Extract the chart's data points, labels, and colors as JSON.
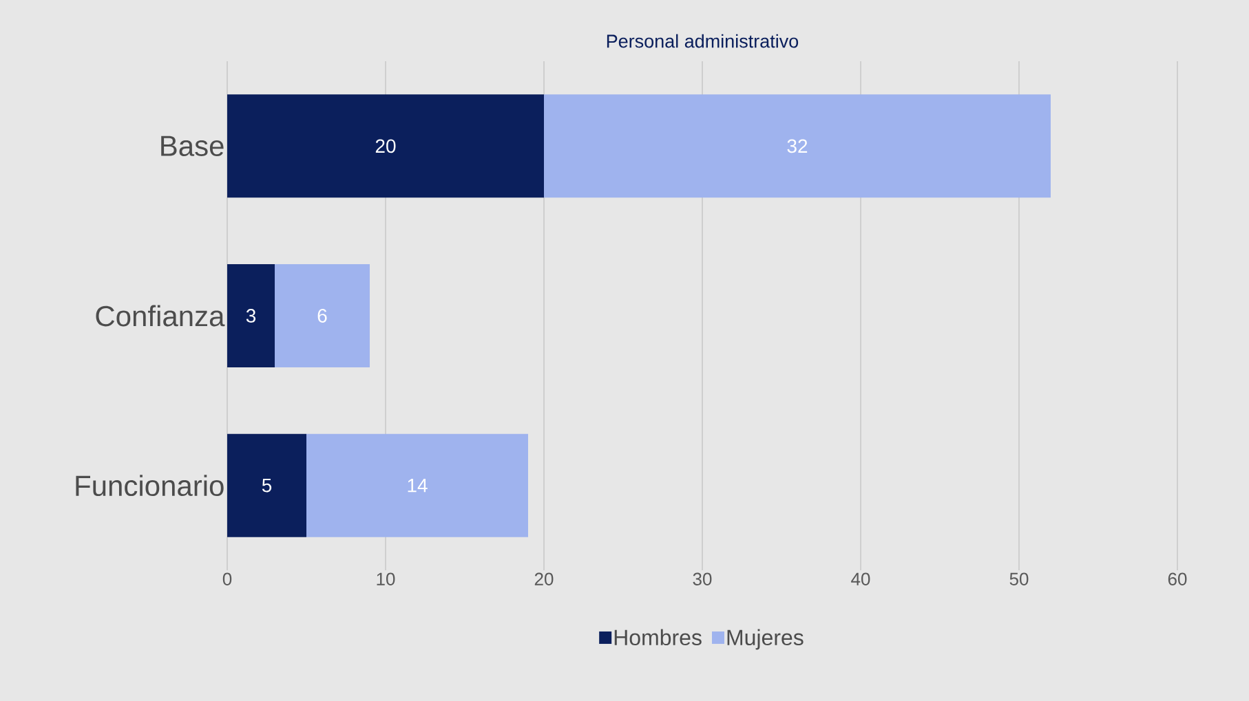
{
  "chart_data": {
    "type": "bar",
    "orientation": "horizontal",
    "stacked": true,
    "title": "Personal administrativo",
    "categories": [
      "Base",
      "Confianza",
      "Funcionario"
    ],
    "series": [
      {
        "name": "Hombres",
        "color": "#0b1f5c",
        "values": [
          20,
          3,
          5
        ]
      },
      {
        "name": "Mujeres",
        "color": "#9fb3ee",
        "values": [
          32,
          6,
          14
        ]
      }
    ],
    "xlim": [
      0,
      60
    ],
    "xticks": [
      0,
      10,
      20,
      30,
      40,
      50,
      60
    ],
    "grid": "x",
    "legend": "bottom",
    "data_labels": true
  }
}
